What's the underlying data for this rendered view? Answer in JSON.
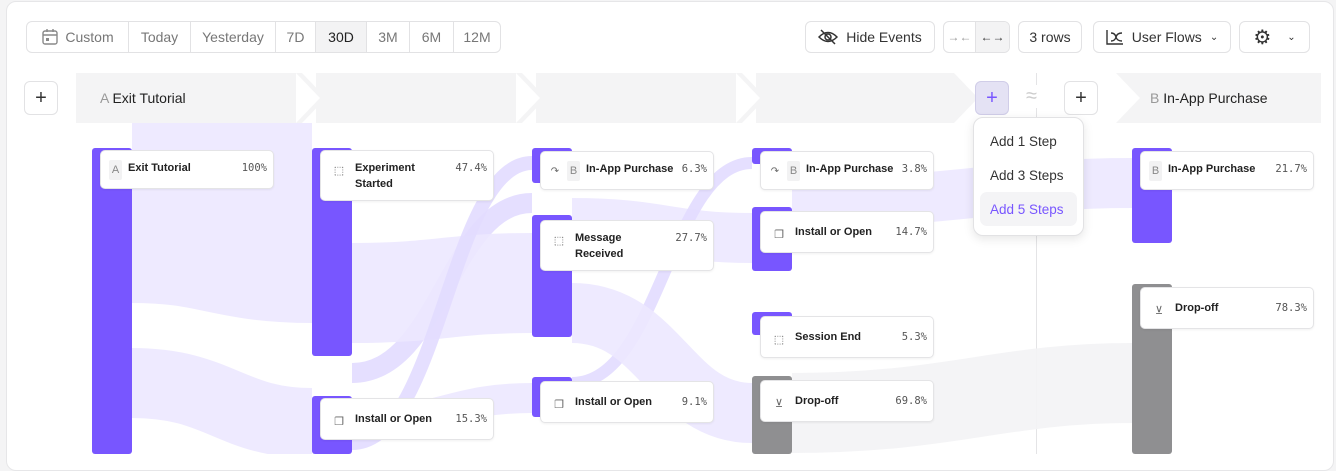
{
  "toolbar": {
    "date_ranges": [
      "Custom",
      "Today",
      "Yesterday",
      "7D",
      "30D",
      "3M",
      "6M",
      "12M"
    ],
    "active_range": "30D",
    "hide_events": "Hide Events",
    "rows": "3 rows",
    "view": "User Flows"
  },
  "steps": {
    "start_label": "A",
    "start_event": "Exit Tutorial",
    "end_label": "B",
    "end_event": "In-App Purchase",
    "approx_symbol": "≈"
  },
  "add_menu": {
    "items": [
      "Add 1 Step",
      "Add 3 Steps",
      "Add 5 Steps"
    ],
    "selected": "Add 5 Steps"
  },
  "columns": [
    {
      "nodes": [
        {
          "letter": "A",
          "name": "Exit Tutorial",
          "pct": "100%",
          "icon": "letter"
        }
      ]
    },
    {
      "nodes": [
        {
          "name": "Experiment Started",
          "pct": "47.4%",
          "icon": "cursor-click-icon"
        },
        {
          "name": "Install or Open",
          "pct": "15.3%",
          "icon": "copy-icon"
        }
      ]
    },
    {
      "nodes": [
        {
          "letter": "B",
          "name": "In-App Purchase",
          "pct": "6.3%",
          "icon": "redirect-arrow-icon"
        },
        {
          "name": "Message Received",
          "pct": "27.7%",
          "icon": "cursor-click-icon"
        },
        {
          "name": "Install or Open",
          "pct": "9.1%",
          "icon": "copy-icon"
        }
      ]
    },
    {
      "nodes": [
        {
          "letter": "B",
          "name": "In-App Purchase",
          "pct": "3.8%",
          "icon": "redirect-arrow-icon"
        },
        {
          "name": "Install or Open",
          "pct": "14.7%",
          "icon": "copy-icon"
        },
        {
          "name": "Session End",
          "pct": "5.3%",
          "icon": "cursor-click-icon"
        },
        {
          "name": "Drop-off",
          "pct": "69.8%",
          "icon": "drop-off-icon"
        }
      ]
    },
    {
      "nodes": [
        {
          "letter": "B",
          "name": "In-App Purchase",
          "pct": "21.7%",
          "icon": "letter"
        },
        {
          "name": "Drop-off",
          "pct": "78.3%",
          "icon": "drop-off-icon"
        }
      ]
    }
  ],
  "colors": {
    "accent": "#7856ff",
    "dropoff": "#8f8f91",
    "flow": "#ece8ff"
  }
}
